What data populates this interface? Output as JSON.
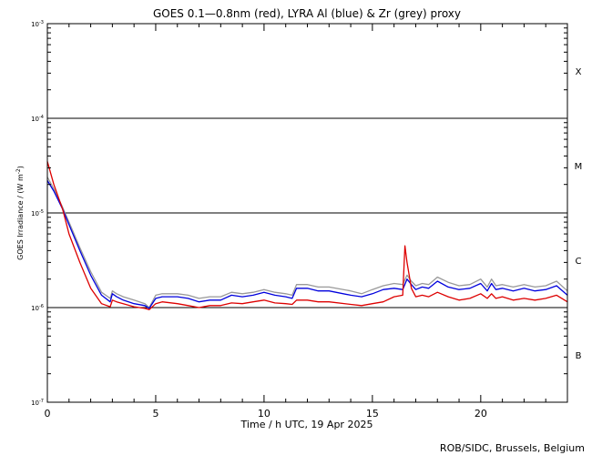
{
  "chart_data": {
    "type": "line",
    "title": "GOES 0.1—0.8nm (red), LYRA Al (blue) & Zr (grey) proxy",
    "xlabel": "Time / h UTC, 19 Apr 2025",
    "ylabel_main": "GOES Irradiance / (W m",
    "ylabel_sup": "-2",
    "ylabel_end": ")",
    "xlim": [
      0,
      24
    ],
    "ylim": [
      1e-07,
      0.001
    ],
    "yscale": "log",
    "x_ticks": [
      {
        "v": 0,
        "label": "0"
      },
      {
        "v": 5,
        "label": "5"
      },
      {
        "v": 10,
        "label": "10"
      },
      {
        "v": 15,
        "label": "15"
      },
      {
        "v": 20,
        "label": "20"
      }
    ],
    "y_ticks": [
      {
        "v": 0.001,
        "base": "10",
        "exp": "-3"
      },
      {
        "v": 0.0001,
        "base": "10",
        "exp": "-4"
      },
      {
        "v": 1e-05,
        "base": "10",
        "exp": "-5"
      },
      {
        "v": 1e-06,
        "base": "10",
        "exp": "-6"
      },
      {
        "v": 1e-07,
        "base": "10",
        "exp": "-7"
      }
    ],
    "flare_levels": [
      0.0001,
      1e-05,
      1e-06
    ],
    "class_labels": [
      {
        "label": "X",
        "v": 0.000316
      },
      {
        "label": "M",
        "v": 3.16e-05
      },
      {
        "label": "C",
        "v": 3.16e-06
      },
      {
        "label": "B",
        "v": 3.16e-07
      }
    ],
    "series": [
      {
        "color": "#999999",
        "x": [
          0,
          0.3,
          0.7,
          1.0,
          1.5,
          2.0,
          2.5,
          2.9,
          3.0,
          3.2,
          3.5,
          4.0,
          4.5,
          4.7,
          5.0,
          5.3,
          6.0,
          6.5,
          7.0,
          7.5,
          8.0,
          8.5,
          9.0,
          9.5,
          10.0,
          10.5,
          11.0,
          11.3,
          11.5,
          12.0,
          12.5,
          13.0,
          14.0,
          14.5,
          15.0,
          15.5,
          16.0,
          16.4,
          16.6,
          16.8,
          17.0,
          17.3,
          17.6,
          18.0,
          18.5,
          19.0,
          19.5,
          20.0,
          20.3,
          20.5,
          20.7,
          21.0,
          21.5,
          22.0,
          22.5,
          23.0,
          23.5,
          24.0
        ],
        "y": [
          2.4e-05,
          1.8e-05,
          1.15e-05,
          8e-06,
          4.3e-06,
          2.4e-06,
          1.45e-06,
          1.25e-06,
          1.5e-06,
          1.4e-06,
          1.3e-06,
          1.2e-06,
          1.1e-06,
          1e-06,
          1.35e-06,
          1.4e-06,
          1.4e-06,
          1.35e-06,
          1.25e-06,
          1.3e-06,
          1.3e-06,
          1.45e-06,
          1.4e-06,
          1.45e-06,
          1.55e-06,
          1.45e-06,
          1.4e-06,
          1.35e-06,
          1.75e-06,
          1.75e-06,
          1.65e-06,
          1.65e-06,
          1.5e-06,
          1.4e-06,
          1.55e-06,
          1.7e-06,
          1.8e-06,
          1.75e-06,
          2.2e-06,
          1.9e-06,
          1.7e-06,
          1.8e-06,
          1.75e-06,
          2.1e-06,
          1.85e-06,
          1.7e-06,
          1.75e-06,
          2e-06,
          1.65e-06,
          2e-06,
          1.7e-06,
          1.75e-06,
          1.65e-06,
          1.75e-06,
          1.65e-06,
          1.7e-06,
          1.9e-06,
          1.5e-06
        ]
      },
      {
        "color": "#0000dd",
        "x": [
          0,
          0.3,
          0.7,
          1.0,
          1.5,
          2.0,
          2.5,
          2.9,
          3.0,
          3.2,
          3.5,
          4.0,
          4.5,
          4.7,
          5.0,
          5.3,
          6.0,
          6.5,
          7.0,
          7.5,
          8.0,
          8.5,
          9.0,
          9.5,
          10.0,
          10.5,
          11.0,
          11.3,
          11.5,
          12.0,
          12.5,
          13.0,
          14.0,
          14.5,
          15.0,
          15.5,
          16.0,
          16.4,
          16.6,
          16.8,
          17.0,
          17.3,
          17.6,
          18.0,
          18.5,
          19.0,
          19.5,
          20.0,
          20.3,
          20.5,
          20.7,
          21.0,
          21.5,
          22.0,
          22.5,
          23.0,
          23.5,
          24.0
        ],
        "y": [
          2.2e-05,
          1.7e-05,
          1.1e-05,
          7.5e-06,
          4e-06,
          2.2e-06,
          1.35e-06,
          1.15e-06,
          1.4e-06,
          1.3e-06,
          1.2e-06,
          1.1e-06,
          1.05e-06,
          9.8e-07,
          1.25e-06,
          1.3e-06,
          1.3e-06,
          1.25e-06,
          1.15e-06,
          1.2e-06,
          1.2e-06,
          1.35e-06,
          1.3e-06,
          1.35e-06,
          1.45e-06,
          1.35e-06,
          1.3e-06,
          1.25e-06,
          1.6e-06,
          1.6e-06,
          1.5e-06,
          1.5e-06,
          1.35e-06,
          1.3e-06,
          1.4e-06,
          1.55e-06,
          1.6e-06,
          1.55e-06,
          2e-06,
          1.75e-06,
          1.55e-06,
          1.65e-06,
          1.6e-06,
          1.9e-06,
          1.65e-06,
          1.55e-06,
          1.6e-06,
          1.8e-06,
          1.5e-06,
          1.8e-06,
          1.55e-06,
          1.6e-06,
          1.5e-06,
          1.6e-06,
          1.5e-06,
          1.55e-06,
          1.7e-06,
          1.35e-06
        ]
      },
      {
        "color": "#dd0000",
        "x": [
          0,
          0.3,
          0.7,
          1.0,
          1.5,
          2.0,
          2.5,
          2.9,
          3.0,
          3.2,
          3.5,
          4.0,
          4.5,
          4.7,
          5.0,
          5.3,
          6.0,
          6.5,
          7.0,
          7.5,
          8.0,
          8.5,
          9.0,
          9.5,
          10.0,
          10.5,
          11.0,
          11.3,
          11.5,
          12.0,
          12.5,
          13.0,
          14.0,
          14.5,
          15.0,
          15.5,
          16.0,
          16.4,
          16.5,
          16.6,
          16.8,
          17.0,
          17.3,
          17.6,
          18.0,
          18.5,
          19.0,
          19.5,
          20.0,
          20.3,
          20.5,
          20.7,
          21.0,
          21.5,
          22.0,
          22.5,
          23.0,
          23.5,
          24.0
        ],
        "y": [
          3.5e-05,
          2e-05,
          1.1e-05,
          6e-06,
          3e-06,
          1.6e-06,
          1.1e-06,
          1.02e-06,
          1.2e-06,
          1.15e-06,
          1.1e-06,
          1.02e-06,
          9.8e-07,
          9.5e-07,
          1.1e-06,
          1.15e-06,
          1.1e-06,
          1.05e-06,
          1e-06,
          1.05e-06,
          1.05e-06,
          1.12e-06,
          1.1e-06,
          1.15e-06,
          1.2e-06,
          1.12e-06,
          1.1e-06,
          1.08e-06,
          1.2e-06,
          1.2e-06,
          1.15e-06,
          1.15e-06,
          1.08e-06,
          1.05e-06,
          1.1e-06,
          1.15e-06,
          1.3e-06,
          1.35e-06,
          4.5e-06,
          3e-06,
          1.6e-06,
          1.3e-06,
          1.35e-06,
          1.3e-06,
          1.45e-06,
          1.3e-06,
          1.2e-06,
          1.25e-06,
          1.4e-06,
          1.25e-06,
          1.4e-06,
          1.25e-06,
          1.3e-06,
          1.2e-06,
          1.25e-06,
          1.2e-06,
          1.25e-06,
          1.35e-06,
          1.15e-06
        ]
      }
    ]
  },
  "footer": {
    "credit": "ROB/SIDC, Brussels, Belgium"
  }
}
